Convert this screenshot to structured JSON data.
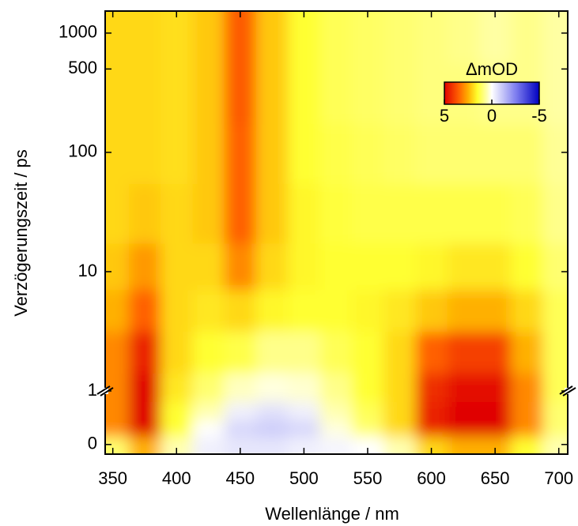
{
  "chart_data": {
    "type": "heatmap",
    "x_label": "Wellenlänge / nm",
    "y_label": "Verzögerungszeit / ps",
    "xlim": [
      344,
      707
    ],
    "xticks": [
      350,
      400,
      450,
      500,
      550,
      600,
      650,
      700
    ],
    "ylim": [
      -0.18,
      1530
    ],
    "ybreak": 1,
    "yscale": "linear-log",
    "yticks": [
      0,
      1,
      10,
      100,
      500,
      1000
    ],
    "x": [
      350,
      375,
      400,
      425,
      450,
      475,
      500,
      525,
      550,
      575,
      600,
      625,
      650,
      675,
      700
    ],
    "y": [
      0,
      0.3,
      0.6,
      1,
      2,
      5,
      10,
      30,
      100,
      300,
      1000
    ],
    "z": [
      [
        1,
        2.5,
        0.5,
        -0.3,
        -0.5,
        -0.5,
        -0.3,
        -0.2,
        0,
        0.5,
        2,
        2.5,
        2.5,
        1.5,
        0.5
      ],
      [
        3,
        5,
        1.5,
        0,
        -0.8,
        -1,
        -0.8,
        0.2,
        1,
        2,
        4.5,
        5,
        5,
        3,
        1
      ],
      [
        3,
        5,
        1.5,
        0.5,
        -0.3,
        -0.6,
        -0.3,
        0.5,
        1.2,
        2,
        4.5,
        5,
        5,
        3,
        1
      ],
      [
        3,
        5,
        1.8,
        1,
        0.4,
        0.2,
        0.3,
        0.8,
        1.5,
        2,
        4.3,
        4.8,
        4.8,
        3,
        1.2
      ],
      [
        3,
        4.5,
        2,
        1.5,
        1.3,
        0.8,
        0.8,
        1.2,
        1.5,
        2,
        3.5,
        4,
        4,
        2.5,
        1.2
      ],
      [
        2.5,
        3.5,
        2,
        1.8,
        2,
        1.6,
        1.5,
        1.5,
        1.6,
        1.8,
        2.2,
        2.5,
        2.5,
        2,
        1.2
      ],
      [
        2.2,
        2.8,
        2,
        2,
        3,
        2,
        1.6,
        1.5,
        1.5,
        1.5,
        1.6,
        1.8,
        1.8,
        1.5,
        1
      ],
      [
        2,
        2.2,
        2,
        2.2,
        3.5,
        2.2,
        1.6,
        1.4,
        1.3,
        1.3,
        1.3,
        1.3,
        1.3,
        1.2,
        0.8
      ],
      [
        2,
        2,
        1.9,
        2.2,
        3.5,
        2.2,
        1.5,
        1.3,
        1.2,
        1.1,
        1,
        1,
        1,
        1,
        0.7
      ],
      [
        2,
        2,
        1.9,
        2.2,
        3.6,
        2.2,
        1.5,
        1.2,
        1.1,
        1,
        0.9,
        0.9,
        0.8,
        0.8,
        0.6
      ],
      [
        2,
        2,
        1.9,
        2.2,
        3.6,
        2.2,
        1.5,
        1.2,
        1.1,
        1,
        0.9,
        0.8,
        0.6,
        0.8,
        0.6
      ]
    ],
    "colorscale": [
      [
        5,
        "#e00000"
      ],
      [
        3.5,
        "#ff6000"
      ],
      [
        2.5,
        "#ffb000"
      ],
      [
        1.5,
        "#ffff30"
      ],
      [
        0.5,
        "#ffffb0"
      ],
      [
        0,
        "#ffffff"
      ],
      [
        -2.5,
        "#8080f0"
      ],
      [
        -5,
        "#0000c0"
      ]
    ],
    "colorbar": {
      "title": "ΔmOD",
      "clim": [
        5,
        -5
      ],
      "ticks": [
        5,
        0,
        -5
      ]
    }
  }
}
